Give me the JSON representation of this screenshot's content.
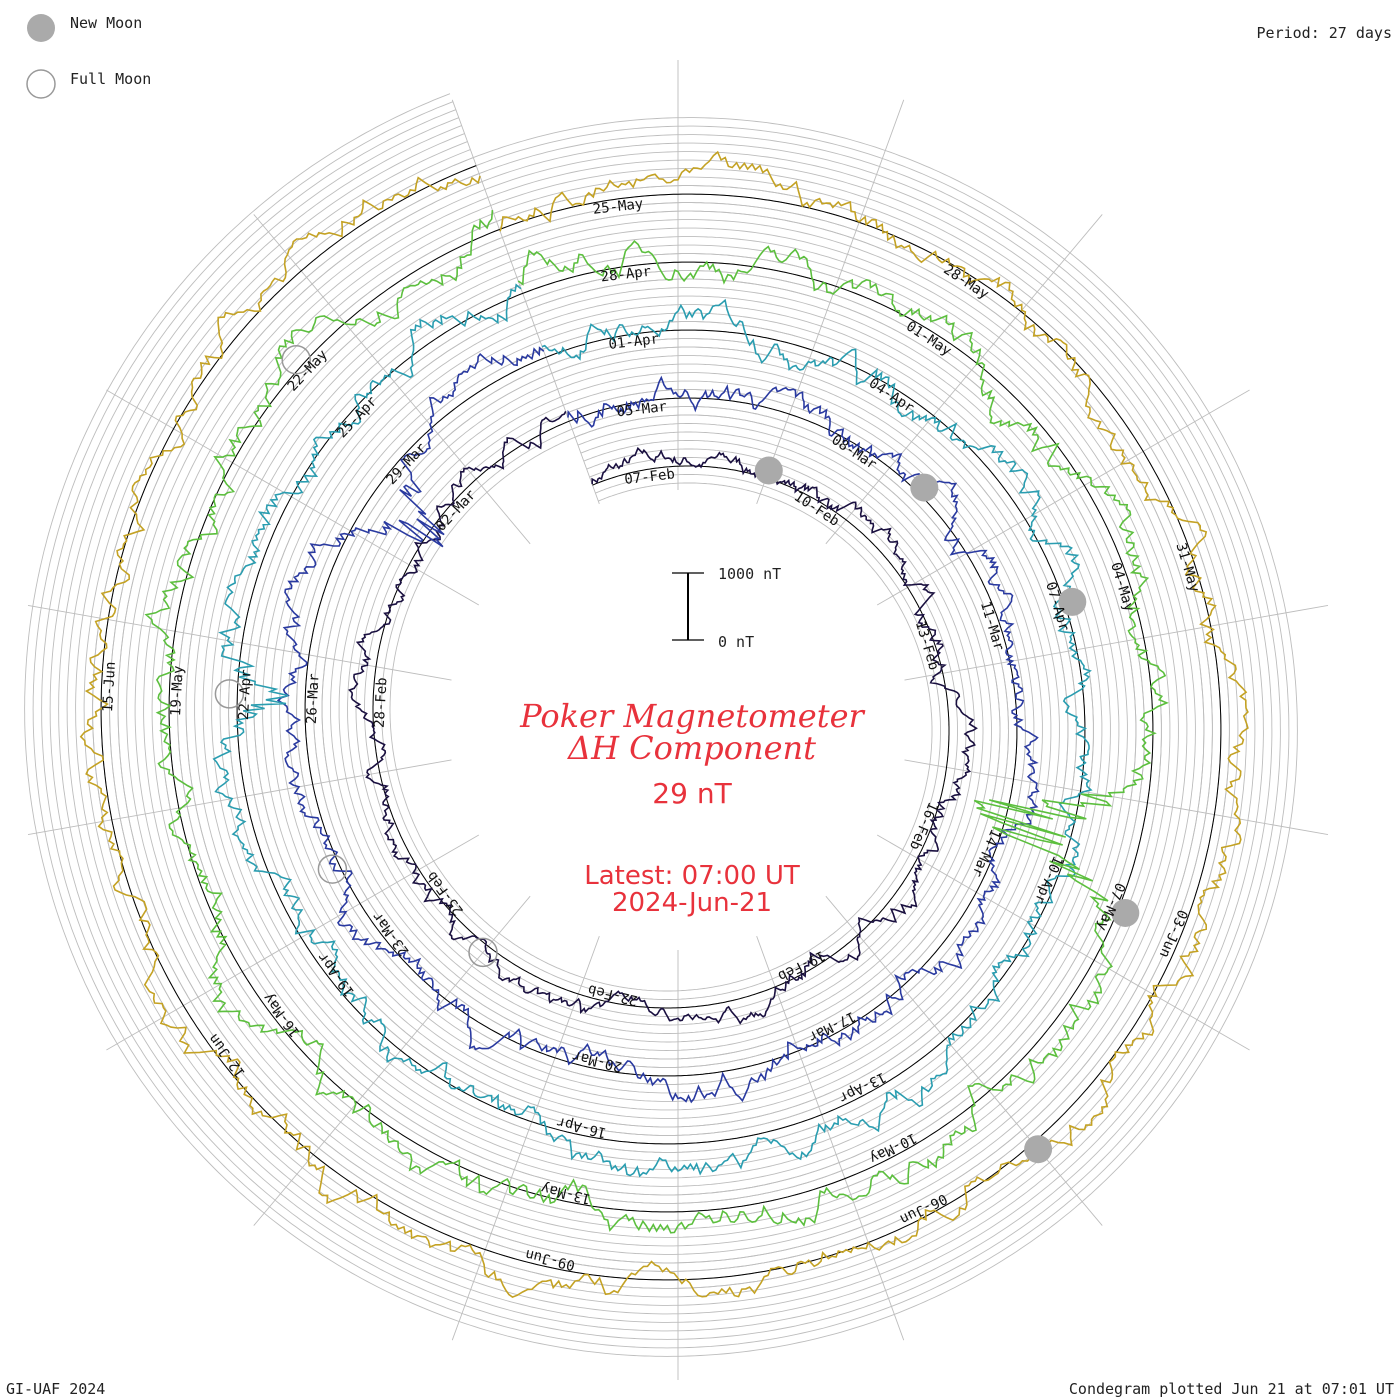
{
  "legend": {
    "new_moon": "New Moon",
    "full_moon": "Full Moon"
  },
  "period_label": "Period: 27 days",
  "footer": {
    "left": "GI-UAF 2024",
    "right": "Condegram plotted Jun 21 at 07:01 UT"
  },
  "scale_bar": {
    "top_label": "1000 nT",
    "bottom_label": "0 nT"
  },
  "center": {
    "title_line1": "Poker Magnetometer",
    "title_line2": "ΔH Component",
    "value": "29 nT",
    "latest_line1": "Latest: 07:00 UT",
    "latest_line2": "2024-Jun-21"
  },
  "colors": {
    "center_text": "#e8323c",
    "grid": "#bdbdbd",
    "baseline": "#000000",
    "moon_fill": "#aaaaaa"
  },
  "chart_data": {
    "type": "line",
    "title": "Poker Magnetometer ΔH Component",
    "period_days": 27,
    "scale": {
      "reference_nT": 1000
    },
    "revolutions": [
      {
        "label_dates": [
          "07-Feb",
          "10-Feb",
          "13-Feb",
          "16-Feb",
          "19-Feb",
          "22-Feb",
          "25-Feb",
          "28-Feb",
          "02-Mar"
        ],
        "color": "#1a1040",
        "noise": 10,
        "storms": []
      },
      {
        "label_dates": [
          "05-Mar",
          "08-Mar",
          "11-Mar",
          "14-Mar",
          "17-Mar",
          "20-Mar",
          "23-Mar",
          "26-Mar",
          "29-Mar"
        ],
        "color": "#2a3aa0",
        "noise": 14,
        "storms": [
          {
            "day": 24.5,
            "amp": 70
          }
        ]
      },
      {
        "label_dates": [
          "01-Apr",
          "04-Apr",
          "07-Apr",
          "10-Apr",
          "13-Apr",
          "16-Apr",
          "19-Apr",
          "22-Apr",
          "25-Apr"
        ],
        "color": "#2a9db0",
        "noise": 16,
        "storms": [
          {
            "day": 22.0,
            "amp": 55
          }
        ]
      },
      {
        "label_dates": [
          "28-Apr",
          "01-May",
          "04-May",
          "07-May",
          "10-May",
          "13-May",
          "16-May",
          "19-May",
          "22-May"
        ],
        "color": "#5cbf3e",
        "noise": 18,
        "storms": [
          {
            "day": 9.5,
            "amp": 140
          }
        ]
      },
      {
        "label_dates": [
          "25-May",
          "28-May",
          "31-May",
          "03-Jun",
          "06-Jun",
          "09-Jun",
          "12-Jun",
          "15-Jun"
        ],
        "color": "#c4a224",
        "noise": 16,
        "storms": []
      }
    ],
    "new_moons": [
      {
        "date": "09-Feb"
      },
      {
        "date": "10-Mar"
      },
      {
        "date": "08-Apr"
      },
      {
        "date": "08-May"
      },
      {
        "date": "06-Jun"
      }
    ],
    "full_moons": [
      {
        "date": "24-Feb"
      },
      {
        "date": "25-Mar"
      },
      {
        "date": "23-Apr"
      },
      {
        "date": "23-May"
      }
    ]
  }
}
